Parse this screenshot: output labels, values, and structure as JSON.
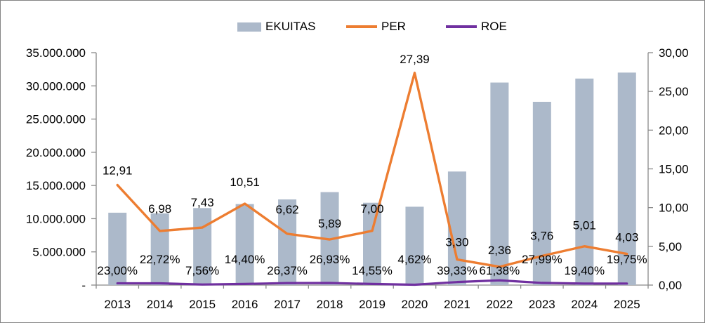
{
  "legend": {
    "items": [
      {
        "label": "EKUITAS",
        "type": "bar",
        "color": "#ACB9CA"
      },
      {
        "label": "PER",
        "type": "line",
        "color": "#ED7D31"
      },
      {
        "label": "ROE",
        "type": "line",
        "color": "#7030A0"
      }
    ]
  },
  "chart_data": {
    "type": "bar",
    "subtype": "combo bar+line, dual axis",
    "title": "",
    "categories": [
      "2013",
      "2014",
      "2015",
      "2016",
      "2017",
      "2018",
      "2019",
      "2020",
      "2021",
      "2022",
      "2023",
      "2024",
      "2025"
    ],
    "series": [
      {
        "name": "EKUITAS",
        "type": "bar",
        "axis": "left",
        "color": "#ACB9CA",
        "values": [
          10900000,
          10800000,
          11600000,
          12200000,
          12900000,
          14000000,
          12400000,
          11800000,
          17100000,
          30500000,
          27600000,
          31100000,
          32000000
        ]
      },
      {
        "name": "PER",
        "type": "line",
        "axis": "right",
        "color": "#ED7D31",
        "values": [
          12.91,
          6.98,
          7.43,
          10.51,
          6.62,
          5.89,
          7.0,
          27.39,
          3.3,
          2.36,
          3.76,
          5.01,
          4.03
        ],
        "labels": [
          "12,91",
          "6,98",
          "7,43",
          "10,51",
          "6,62",
          "5,89",
          "7,00",
          "27,39",
          "3,30",
          "2,36",
          "3,76",
          "5,01",
          "4,03"
        ],
        "label_dy": [
          -15,
          -26,
          -30,
          -25,
          -29,
          -17,
          -26,
          -14,
          -19,
          -18,
          -23,
          -24,
          -18
        ]
      },
      {
        "name": "ROE",
        "type": "line",
        "axis": "right",
        "color": "#7030A0",
        "values_pct": [
          23.0,
          22.72,
          7.56,
          14.4,
          26.37,
          26.93,
          14.55,
          4.62,
          39.33,
          61.38,
          27.99,
          19.4,
          19.75
        ],
        "labels": [
          "23,00%",
          "22,72%",
          "7,56%",
          "14,40%",
          "26,37%",
          "26,93%",
          "14,55%",
          "4,62%",
          "39,33%",
          "61,38%",
          "27,99%",
          "19,40%",
          "19,75%"
        ],
        "label_row": [
          0,
          1,
          0,
          1,
          0,
          1,
          0,
          1,
          0,
          0,
          1,
          0,
          1
        ]
      }
    ],
    "left_axis": {
      "min": 0,
      "max": 35000000,
      "tick_step": 5000000,
      "tick_labels": [
        "35.000.000",
        "30.000.000",
        "25.000.000",
        "20.000.000",
        "15.000.000",
        "10.000.000",
        "5.000.000",
        "-"
      ]
    },
    "right_axis": {
      "min": 0,
      "max": 30,
      "tick_step": 5,
      "tick_labels": [
        "30,00",
        "25,00",
        "20,00",
        "15,00",
        "10,00",
        "5,00",
        "0,00"
      ]
    },
    "grid": false,
    "legend_position": "top",
    "axis_color": "#898989",
    "text_color": "#000000",
    "font_px": 17
  }
}
